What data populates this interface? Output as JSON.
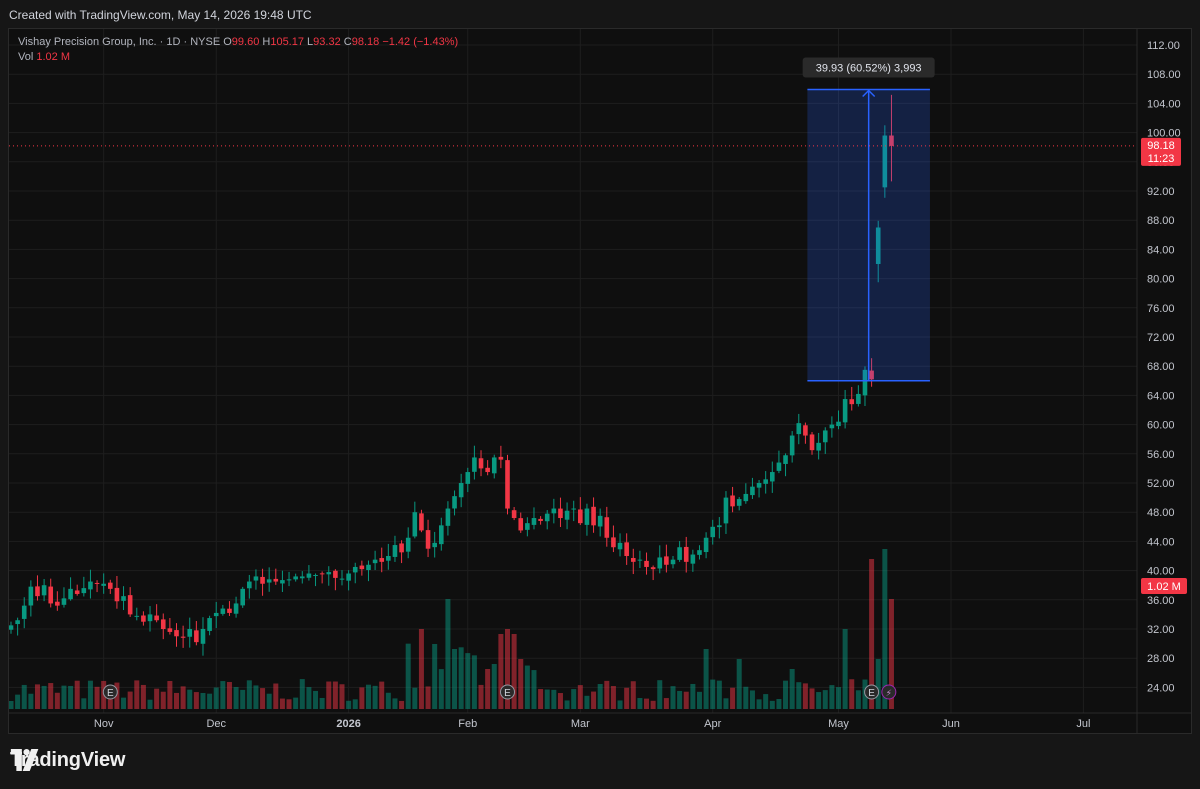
{
  "header": {
    "created_text": "Created with TradingView.com, May 14, 2026 19:48 UTC"
  },
  "legend": {
    "title": "Vishay Precision Group, Inc. · 1D · NYSE",
    "open_label": "O",
    "open": "99.60",
    "high_label": "H",
    "high": "105.17",
    "low_label": "L",
    "low": "93.32",
    "close_label": "C",
    "close": "98.18",
    "change": "−1.42 (−1.43%)",
    "vol_label": "Vol",
    "vol": "1.02 M"
  },
  "measure": {
    "label": "39.93 (60.52%) 3,993",
    "from_price": 66.0,
    "to_price": 105.9,
    "from_day": 120,
    "to_day": 137
  },
  "price_tag": {
    "price": "98.18",
    "countdown": "11:23",
    "value": 98.18
  },
  "volume_tag": {
    "label": "1.02 M"
  },
  "brand": {
    "name": "TradingView"
  },
  "colors": {
    "up": "#089981",
    "down": "#f23645",
    "background": "#0f0f0f",
    "measure_line": "#2962ff",
    "grid": "#1e1e1e"
  },
  "chart_data": {
    "type": "candlestick",
    "title": "Vishay Precision Group, Inc. · 1D · NYSE",
    "ylim": [
      22,
      113
    ],
    "y_ticks": [
      "112.00",
      "108.00",
      "104.00",
      "100.00",
      "96.00",
      "92.00",
      "88.00",
      "84.00",
      "80.00",
      "76.00",
      "72.00",
      "68.00",
      "64.00",
      "60.00",
      "56.00",
      "52.00",
      "48.00",
      "44.00",
      "40.00",
      "36.00",
      "32.00",
      "28.00",
      "24.00"
    ],
    "x_labels": [
      {
        "label": "Nov",
        "day": 14
      },
      {
        "label": "Dec",
        "day": 31
      },
      {
        "label": "2026",
        "day": 51,
        "bold": true
      },
      {
        "label": "Feb",
        "day": 69
      },
      {
        "label": "Mar",
        "day": 86
      },
      {
        "label": "Apr",
        "day": 106
      },
      {
        "label": "May",
        "day": 125
      },
      {
        "label": "Jun",
        "day": 142
      },
      {
        "label": "Jul",
        "day": 162
      }
    ],
    "grid": true,
    "earnings_markers": [
      15,
      75,
      130
    ],
    "dividend_markers": [
      132
    ],
    "closes": [
      32.5,
      33.2,
      35.2,
      37.8,
      36.5,
      38,
      35.5,
      35.2,
      36.2,
      37.5,
      36.8,
      37.6,
      38.5,
      38.2,
      38.2,
      37.5,
      35.8,
      36.5,
      34,
      33.8,
      33,
      34,
      33.2,
      32,
      31.6,
      31,
      30.8,
      32,
      30.2,
      32,
      33.5,
      34.2,
      34.8,
      34.2,
      35.5,
      37.5,
      38.5,
      39.2,
      38.2,
      38.8,
      38.5,
      38.7,
      38.8,
      39.2,
      39.2,
      39.6,
      39.4,
      39.6,
      39.8,
      39,
      38.9,
      39.6,
      40.5,
      40.2,
      40.8,
      41.5,
      41.2,
      42,
      43.5,
      42.5,
      44.5,
      48,
      45.5,
      43,
      43.8,
      46.2,
      48.5,
      50.2,
      52,
      53.5,
      55.5,
      54,
      53.5,
      55.5,
      55.2,
      48.5,
      47.2,
      45.5,
      46.5,
      47.2,
      46.8,
      47.8,
      48.5,
      47.2,
      48.2,
      48.5,
      46.5,
      48.5,
      46.2,
      47.5,
      44.5,
      43.2,
      43.8,
      42,
      41.2,
      41.5,
      40.5,
      40.2,
      41.8,
      40.8,
      41.5,
      43.2,
      41.2,
      42.2,
      42.8,
      44.5,
      46,
      46.2,
      50,
      48.8,
      49.8,
      50.5,
      51.5,
      52,
      52.5,
      53.5,
      54.8,
      55.8,
      58.5,
      60.2,
      58.5,
      56.5,
      57.5,
      59.2,
      60,
      60.4,
      63.5,
      62.8,
      64.2,
      67.5,
      66.2,
      87,
      99.6,
      98.18
    ],
    "volume_scale_million": 1.02
  }
}
